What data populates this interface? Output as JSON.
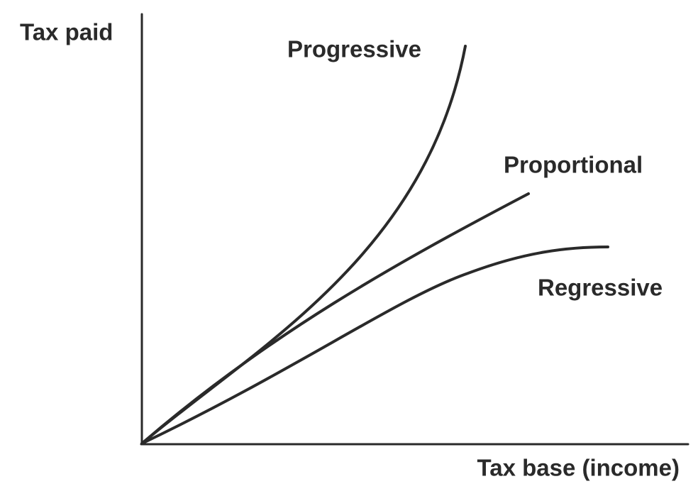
{
  "axes": {
    "y_label": "Tax paid",
    "x_label": "Tax base (income)"
  },
  "curves": [
    {
      "label": "Progressive"
    },
    {
      "label": "Proportional"
    },
    {
      "label": "Regressive"
    }
  ]
}
